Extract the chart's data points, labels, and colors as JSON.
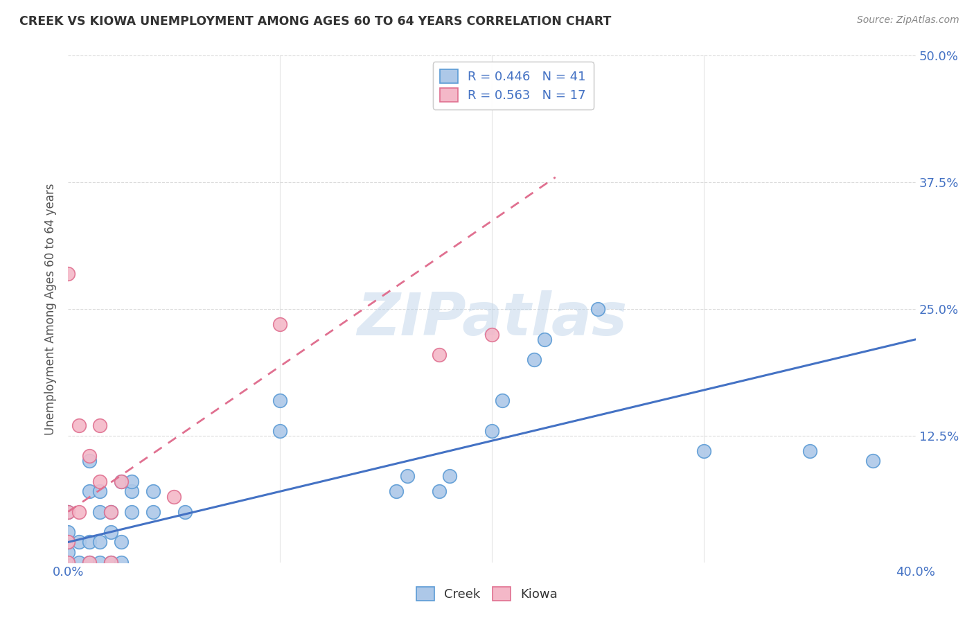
{
  "title": "CREEK VS KIOWA UNEMPLOYMENT AMONG AGES 60 TO 64 YEARS CORRELATION CHART",
  "source": "Source: ZipAtlas.com",
  "ylabel": "Unemployment Among Ages 60 to 64 years",
  "xlim": [
    0.0,
    0.4
  ],
  "ylim": [
    0.0,
    0.5
  ],
  "xticks": [
    0.0,
    0.1,
    0.2,
    0.3,
    0.4
  ],
  "yticks": [
    0.0,
    0.125,
    0.25,
    0.375,
    0.5
  ],
  "xtick_labels": [
    "0.0%",
    "",
    "",
    "",
    "40.0%"
  ],
  "ytick_labels": [
    "",
    "12.5%",
    "25.0%",
    "37.5%",
    "50.0%"
  ],
  "creek_color": "#adc8e8",
  "creek_edge_color": "#5b9bd5",
  "kiowa_color": "#f4b8c8",
  "kiowa_edge_color": "#e07090",
  "creek_line_color": "#4472c4",
  "kiowa_line_color": "#e07090",
  "creek_R": 0.446,
  "creek_N": 41,
  "kiowa_R": 0.563,
  "kiowa_N": 17,
  "creek_points_x": [
    0.0,
    0.0,
    0.0,
    0.0,
    0.0,
    0.005,
    0.005,
    0.01,
    0.01,
    0.01,
    0.01,
    0.015,
    0.015,
    0.015,
    0.015,
    0.02,
    0.02,
    0.02,
    0.025,
    0.025,
    0.025,
    0.03,
    0.03,
    0.03,
    0.04,
    0.04,
    0.055,
    0.1,
    0.1,
    0.155,
    0.16,
    0.175,
    0.18,
    0.2,
    0.205,
    0.22,
    0.225,
    0.25,
    0.3,
    0.35,
    0.38
  ],
  "creek_points_y": [
    0.0,
    0.01,
    0.02,
    0.03,
    0.05,
    0.0,
    0.02,
    0.0,
    0.02,
    0.07,
    0.1,
    0.0,
    0.02,
    0.05,
    0.07,
    0.0,
    0.03,
    0.05,
    0.0,
    0.02,
    0.08,
    0.05,
    0.07,
    0.08,
    0.05,
    0.07,
    0.05,
    0.13,
    0.16,
    0.07,
    0.085,
    0.07,
    0.085,
    0.13,
    0.16,
    0.2,
    0.22,
    0.25,
    0.11,
    0.11,
    0.1
  ],
  "kiowa_points_x": [
    0.0,
    0.0,
    0.0,
    0.0,
    0.005,
    0.005,
    0.01,
    0.01,
    0.015,
    0.015,
    0.02,
    0.02,
    0.025,
    0.05,
    0.1,
    0.175,
    0.2
  ],
  "kiowa_points_y": [
    0.0,
    0.02,
    0.05,
    0.285,
    0.05,
    0.135,
    0.0,
    0.105,
    0.08,
    0.135,
    0.0,
    0.05,
    0.08,
    0.065,
    0.235,
    0.205,
    0.225
  ],
  "creek_line_x": [
    0.0,
    0.4
  ],
  "creek_line_y": [
    0.02,
    0.22
  ],
  "kiowa_line_x": [
    0.0,
    0.23
  ],
  "kiowa_line_y": [
    0.05,
    0.38
  ],
  "watermark_text": "ZIPatlas",
  "background_color": "#ffffff",
  "grid_color": "#cccccc"
}
